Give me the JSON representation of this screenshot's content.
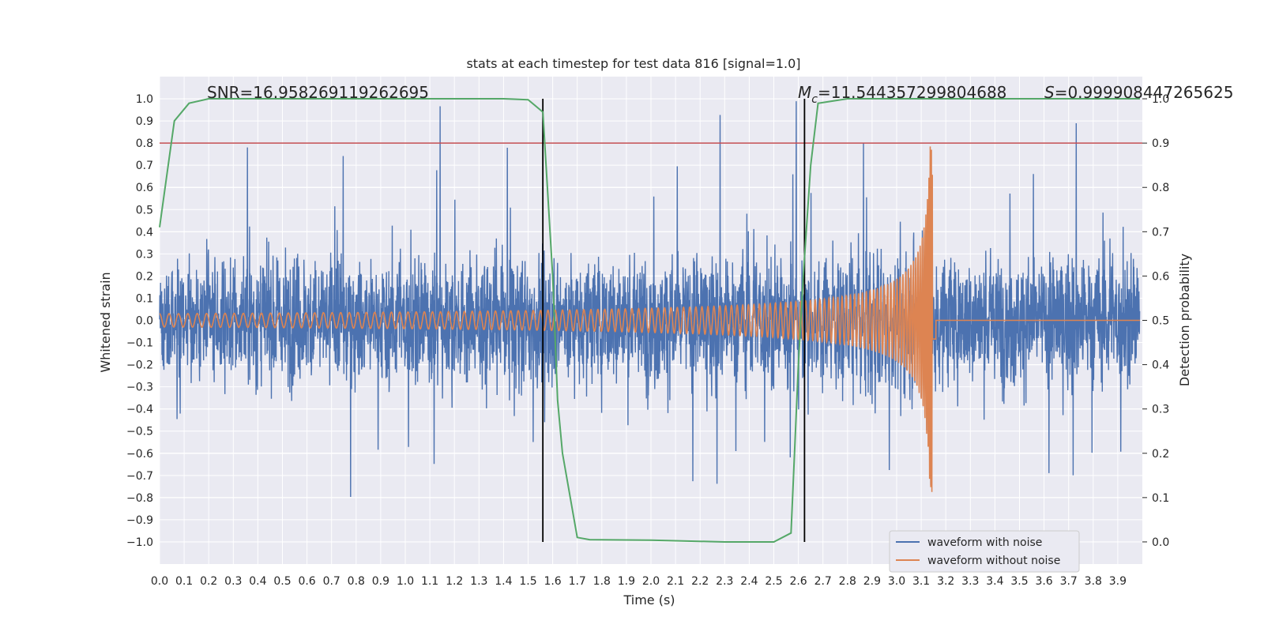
{
  "chart_data": {
    "type": "line",
    "title": "stats at each timestep for test data 816 [signal=1.0]",
    "xlabel": "Time (s)",
    "ylabel": "Whitened strain",
    "y2label": "Detection probability",
    "xlim": [
      0.0,
      4.0
    ],
    "ylim": [
      -1.1,
      1.1
    ],
    "y2lim": [
      -0.05,
      1.05
    ],
    "xticks": [
      0.0,
      0.1,
      0.2,
      0.3,
      0.4,
      0.5,
      0.6,
      0.7,
      0.8,
      0.9,
      1.0,
      1.1,
      1.2,
      1.3,
      1.4,
      1.5,
      1.6,
      1.7,
      1.8,
      1.9,
      2.0,
      2.1,
      2.2,
      2.3,
      2.4,
      2.5,
      2.6,
      2.7,
      2.8,
      2.9,
      3.0,
      3.1,
      3.2,
      3.3,
      3.4,
      3.5,
      3.6,
      3.7,
      3.8,
      3.9
    ],
    "yticks": [
      -1.0,
      -0.9,
      -0.8,
      -0.7,
      -0.6,
      -0.5,
      -0.4,
      -0.3,
      -0.2,
      -0.1,
      0.0,
      0.1,
      0.2,
      0.3,
      0.4,
      0.5,
      0.6,
      0.7,
      0.8,
      0.9,
      1.0
    ],
    "y2ticks": [
      0.0,
      0.1,
      0.2,
      0.3,
      0.4,
      0.5,
      0.6,
      0.7,
      0.8,
      0.9,
      1.0
    ],
    "grid": true,
    "legend_position": "lower-right",
    "series": [
      {
        "name": "waveform with noise",
        "color": "#4c72b0",
        "axis": "left",
        "description_values": "dense noise, typically within -0.6..0.6 with spikes to about +/-1.0"
      },
      {
        "name": "waveform without noise",
        "color": "#dd8452",
        "axis": "left",
        "chirp": {
          "start_time": 0.0,
          "merger_time": 3.15,
          "start_amplitude": 0.03,
          "peak_amplitude": 0.8,
          "after_merger": 0.0
        }
      },
      {
        "name": "",
        "color": "#55a868",
        "axis": "right",
        "x": [
          0.0,
          0.06,
          0.12,
          0.2,
          0.5,
          1.0,
          1.4,
          1.5,
          1.56,
          1.6,
          1.62,
          1.64,
          1.7,
          1.75,
          2.0,
          2.3,
          2.5,
          2.57,
          2.6,
          2.62,
          2.65,
          2.68,
          2.8,
          3.3,
          3.99
        ],
        "values": [
          0.71,
          0.95,
          0.99,
          1.0,
          1.0,
          1.0,
          1.0,
          0.998,
          0.97,
          0.6,
          0.32,
          0.2,
          0.01,
          0.005,
          0.004,
          0.0,
          0.0,
          0.02,
          0.4,
          0.6,
          0.85,
          0.99,
          1.0,
          1.0,
          1.0
        ]
      }
    ],
    "threshold_line": {
      "axis": "right",
      "value": 0.9,
      "color": "#c44e52"
    },
    "vertical_lines": [
      1.56,
      2.625
    ],
    "annotations": {
      "snr": "SNR=16.958269119262695",
      "mc_symbol": "M",
      "mc_subscript": "c",
      "mc_value": "=11.544357299804688",
      "s_symbol": "S",
      "s_value": "=0.999908447265625"
    }
  }
}
